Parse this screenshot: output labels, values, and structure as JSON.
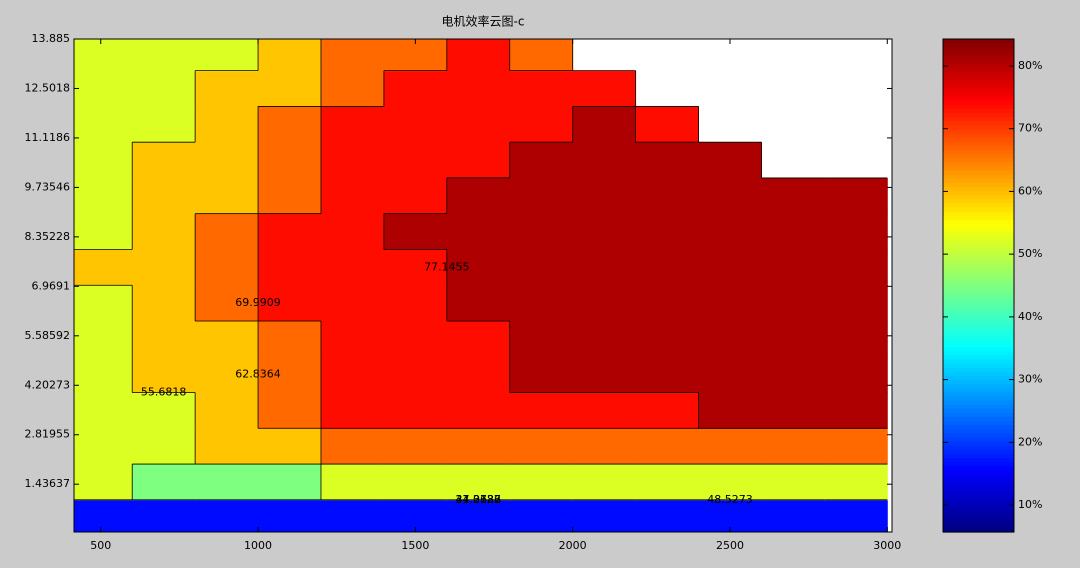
{
  "chart_data": {
    "type": "contour",
    "title": "电机效率云图-c",
    "colormap": "jet",
    "x": [
      500,
      700,
      900,
      1100,
      1300,
      1500,
      1700,
      1900,
      2100,
      2300,
      2500,
      2700,
      2900
    ],
    "y": [
      0.5,
      1.5,
      2.5,
      3.5,
      4.5,
      5.5,
      6.5,
      7.5,
      8.5,
      9.5,
      10.5,
      11.5,
      12.5,
      13.5
    ],
    "z": [
      [
        15,
        18,
        20,
        22,
        23,
        22,
        22,
        22,
        22,
        22,
        22,
        22,
        22
      ],
      [
        50,
        45,
        45,
        48,
        50,
        52,
        52,
        53,
        53,
        54,
        54,
        55,
        55
      ],
      [
        52,
        55,
        60,
        62,
        63,
        63,
        64,
        64,
        65,
        65,
        66,
        66,
        68
      ],
      [
        50,
        55,
        62,
        66,
        70,
        72,
        74,
        76,
        77,
        77,
        78,
        78,
        78
      ],
      [
        52,
        57,
        62,
        68,
        71,
        73,
        76,
        78,
        79,
        80,
        80,
        80,
        78
      ],
      [
        54,
        57,
        60,
        67,
        71,
        73,
        76,
        78,
        79,
        80,
        80,
        80,
        78
      ],
      [
        55,
        60,
        64,
        70,
        72,
        74,
        78,
        79,
        80,
        80,
        80,
        80,
        78
      ],
      [
        56,
        61,
        66,
        71,
        72,
        77,
        79,
        80,
        80,
        80,
        80,
        80,
        78
      ],
      [
        55,
        58,
        64,
        70,
        72,
        78,
        79,
        80,
        80,
        80,
        80,
        80,
        78
      ],
      [
        54,
        58,
        62,
        66,
        71,
        74,
        78,
        79,
        80,
        80,
        80,
        80,
        78
      ],
      [
        54,
        56,
        60,
        66,
        70,
        74,
        77,
        79,
        80,
        80,
        80,
        null,
        null
      ],
      [
        53,
        55,
        58,
        64,
        70,
        72,
        73,
        76,
        78,
        77,
        null,
        null,
        null
      ],
      [
        52,
        54,
        56,
        60,
        66,
        70,
        71,
        72,
        76,
        null,
        null,
        null,
        null
      ],
      [
        50,
        54,
        55,
        58,
        64,
        68,
        70,
        66,
        null,
        null,
        null,
        null,
        null
      ]
    ],
    "levels": [
      5.6,
      27.0636,
      34.2182,
      41.3727,
      48.5273,
      55.6818,
      62.8364,
      69.9909,
      77.1455
    ],
    "xlim": [
      415,
      3015
    ],
    "ylim": [
      0.1,
      13.885
    ],
    "xticks": [
      500,
      1000,
      1500,
      2000,
      2500,
      3000
    ],
    "yticks": [
      1.43637,
      2.81955,
      4.20273,
      5.58592,
      6.9691,
      8.35228,
      9.73546,
      11.1186,
      12.5018,
      13.885
    ],
    "colorbar": {
      "clim": [
        5.7,
        84.3
      ],
      "ticks": [
        {
          "value": 10,
          "label": "10%"
        },
        {
          "value": 20,
          "label": "20%"
        },
        {
          "value": 30,
          "label": "30%"
        },
        {
          "value": 40,
          "label": "40%"
        },
        {
          "value": 50,
          "label": "50%"
        },
        {
          "value": 60,
          "label": "60%"
        },
        {
          "value": 70,
          "label": "70%"
        },
        {
          "value": 80,
          "label": "80%"
        }
      ]
    }
  }
}
